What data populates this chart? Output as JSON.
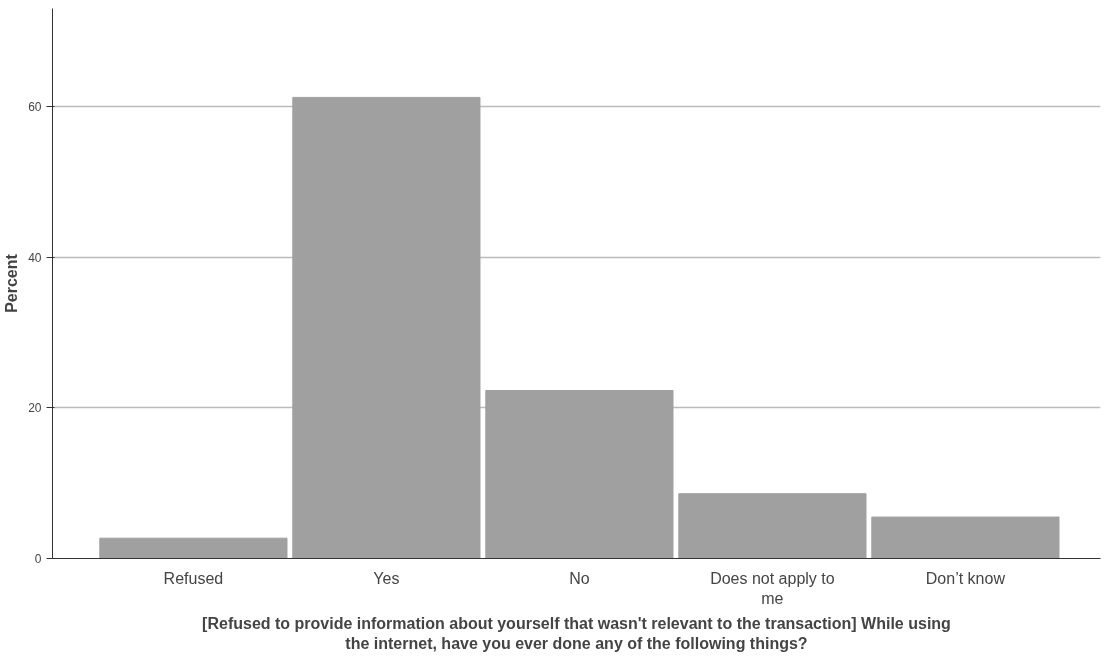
{
  "chart_data": {
    "type": "bar",
    "categories": [
      "Refused",
      "Yes",
      "No",
      "Does not apply to me",
      "Don’t know"
    ],
    "values": [
      2.7,
      61.2,
      22.3,
      8.6,
      5.5
    ],
    "color": "#a0a0a0",
    "xlabel": "[Refused to provide information about yourself that wasn't relevant to the transaction] While using the internet, have you ever done any of the following things?",
    "ylabel": "Percent",
    "ylim": [
      0,
      73
    ],
    "yticks": [
      0,
      20,
      40,
      60
    ],
    "grid": "y"
  }
}
